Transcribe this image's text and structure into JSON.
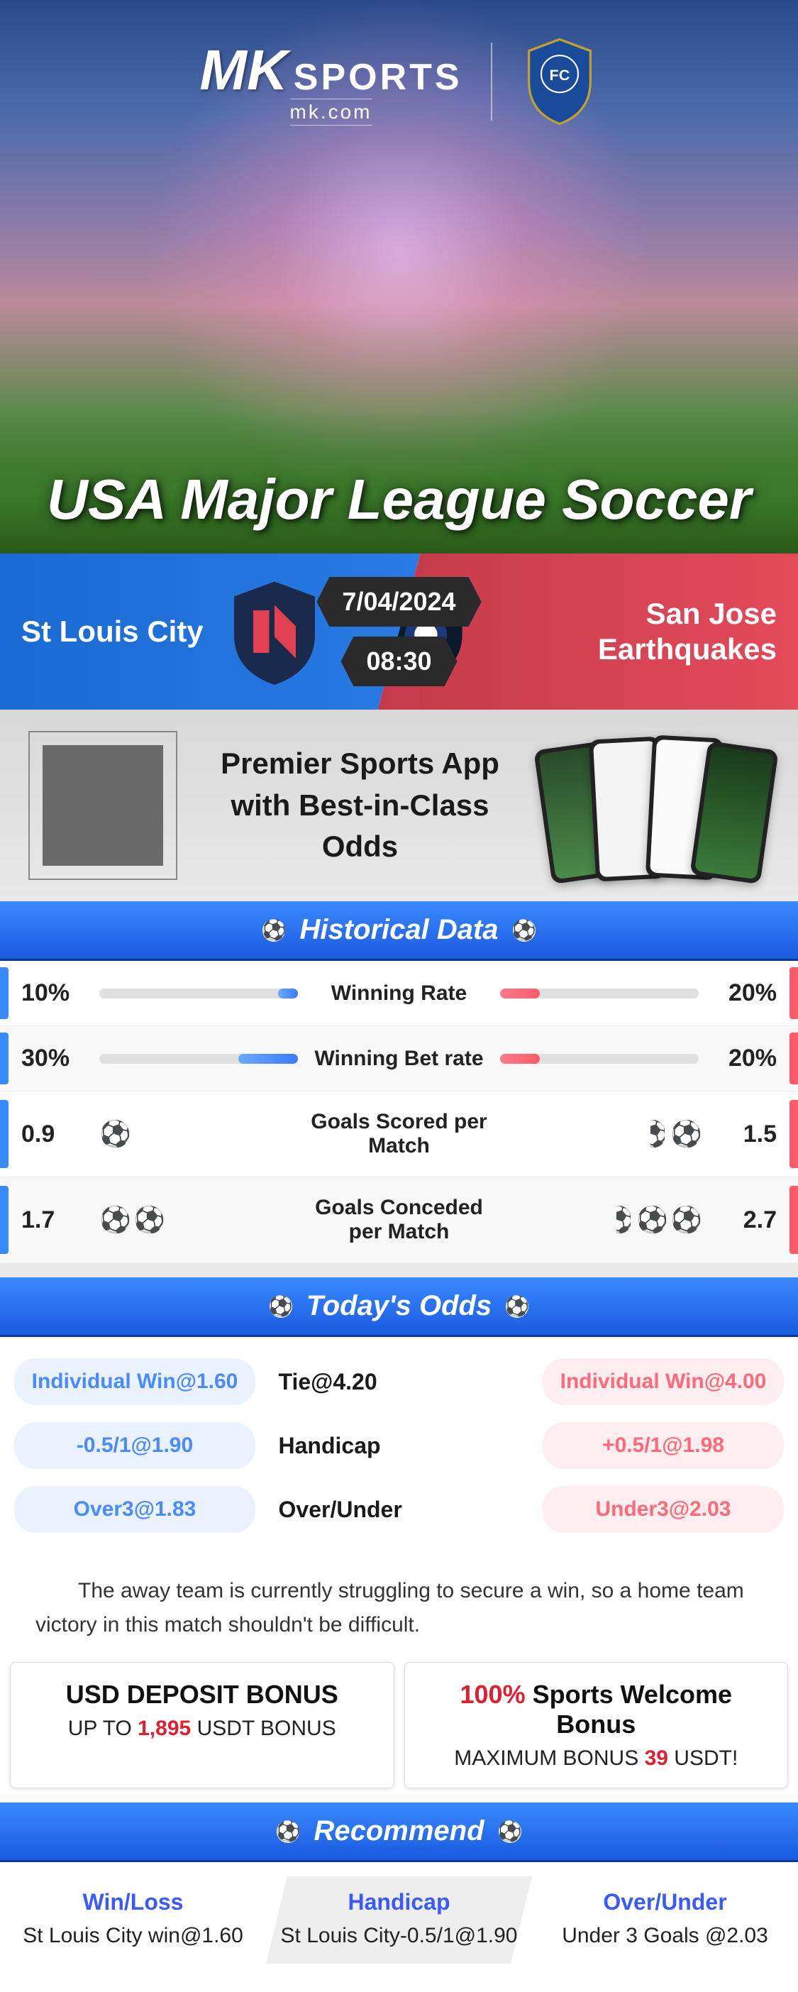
{
  "brand": {
    "mk": "MK",
    "sports": "SPORTS",
    "sub": "mk.com"
  },
  "hero": {
    "title": "USA Major League Soccer"
  },
  "match": {
    "home": "St Louis City",
    "away": "San Jose Earthquakes",
    "date": "7/04/2024",
    "time": "08:30"
  },
  "promo": {
    "line1": "Premier Sports App",
    "line2": "with Best-in-Class Odds"
  },
  "sections": {
    "historical": "Historical Data",
    "odds": "Today's Odds",
    "recommend": "Recommend"
  },
  "stats": [
    {
      "label": "Winning Rate",
      "left_val": "10%",
      "right_val": "20%",
      "left_pct": 10,
      "right_pct": 20,
      "type": "bar"
    },
    {
      "label": "Winning Bet rate",
      "left_val": "30%",
      "right_val": "20%",
      "left_pct": 30,
      "right_pct": 20,
      "type": "bar"
    },
    {
      "label": "Goals Scored per Match",
      "left_val": "0.9",
      "right_val": "1.5",
      "left_balls": 1,
      "right_balls": 2,
      "right_half": true,
      "left_half": false,
      "type": "balls"
    },
    {
      "label": "Goals Conceded per Match",
      "left_val": "1.7",
      "right_val": "2.7",
      "left_balls": 2,
      "right_balls": 3,
      "right_half": true,
      "left_half": false,
      "type": "balls"
    }
  ],
  "odds": {
    "rows": [
      {
        "left": "Individual Win@1.60",
        "mid": "Tie@4.20",
        "right": "Individual Win@4.00"
      },
      {
        "left": "-0.5/1@1.90",
        "mid": "Handicap",
        "right": "+0.5/1@1.98"
      },
      {
        "left": "Over3@1.83",
        "mid": "Over/Under",
        "right": "Under3@2.03"
      }
    ]
  },
  "quote": "The away team is currently struggling to secure a win, so a home team victory in this match shouldn't be difficult.",
  "bonuses": [
    {
      "title_pre": "",
      "title_red": "",
      "title_post": "USD DEPOSIT BONUS",
      "sub_pre": "UP TO ",
      "sub_red": "1,895",
      "sub_post": " USDT BONUS"
    },
    {
      "title_pre": "",
      "title_red": "100%",
      "title_post": " Sports Welcome Bonus",
      "sub_pre": "MAXIMUM BONUS ",
      "sub_red": "39",
      "sub_post": " USDT!"
    }
  ],
  "recommend": [
    {
      "title": "Win/Loss",
      "body": "St Louis City win@1.60"
    },
    {
      "title": "Handicap",
      "body": "St Louis City-0.5/1@1.90"
    },
    {
      "title": "Over/Under",
      "body": "Under 3 Goals @2.03"
    }
  ],
  "colors": {
    "blue": "#3a7aff",
    "red": "#ff5a6a",
    "header_grad_top": "#3a8aff",
    "header_grad_bot": "#1a5ae0"
  }
}
